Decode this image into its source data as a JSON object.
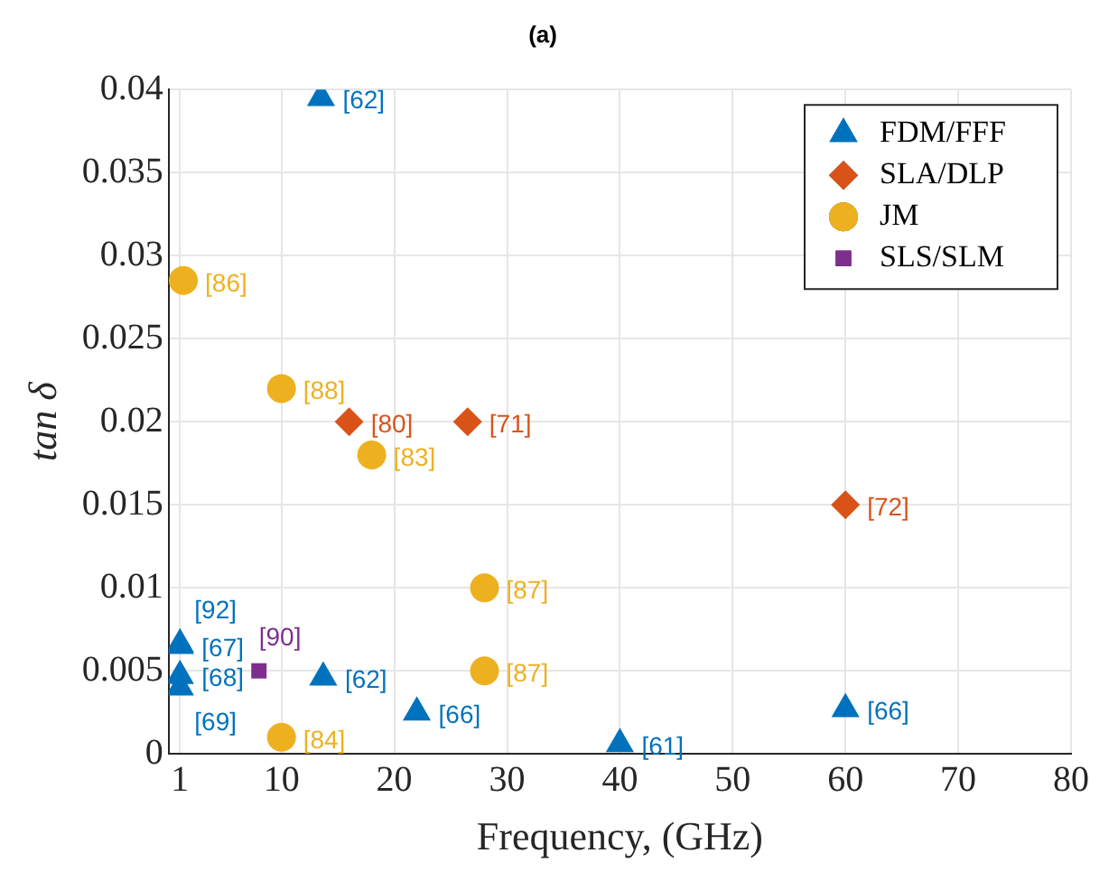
{
  "chart_data": {
    "type": "scatter",
    "title": "(a)",
    "xlabel": "Frequency, (GHz)",
    "ylabel": "tan δ",
    "xlim": [
      0,
      80
    ],
    "xticks": [
      1,
      10,
      20,
      30,
      40,
      50,
      60,
      70,
      80
    ],
    "ylim": [
      0,
      0.04
    ],
    "yticks": [
      0,
      0.005,
      0.01,
      0.015,
      0.02,
      0.025,
      0.03,
      0.035,
      0.04
    ],
    "grid": true,
    "legend": "top right",
    "series": [
      {
        "name": "FDM/FFF",
        "color": "#0072bd",
        "marker": "triangle",
        "x": [
          13.5,
          1,
          1,
          1,
          1,
          13.7,
          22,
          40,
          60
        ],
        "values": [
          0.0395,
          0.0065,
          0.0066,
          0.0047,
          0.004,
          0.0046,
          0.0025,
          0.0006,
          0.0027
        ]
      },
      {
        "name": "SLA/DLP",
        "color": "#d95319",
        "marker": "diamond",
        "x": [
          16,
          26.5,
          60
        ],
        "values": [
          0.02,
          0.02,
          0.015
        ]
      },
      {
        "name": "JM",
        "color": "#edb120",
        "marker": "circle",
        "x": [
          1.3,
          10,
          18,
          28,
          28,
          10
        ],
        "values": [
          0.0285,
          0.022,
          0.018,
          0.01,
          0.005,
          0.001
        ]
      },
      {
        "name": "SLS/SLM",
        "color": "#7e2f8e",
        "marker": "square",
        "x": [
          8
        ],
        "values": [
          0.005
        ]
      }
    ],
    "annotations": [
      {
        "text": "[62]",
        "x": 13.5,
        "y": 0.0395
      },
      {
        "text": "[67]",
        "x": 1,
        "y": 0.0065
      },
      {
        "text": "[92]",
        "x": 1,
        "y": 0.0066
      },
      {
        "text": "[68]",
        "x": 1,
        "y": 0.0047
      },
      {
        "text": "[69]",
        "x": 1,
        "y": 0.004
      },
      {
        "text": "[62]",
        "x": 13.7,
        "y": 0.0046
      },
      {
        "text": "[66]",
        "x": 22,
        "y": 0.0025
      },
      {
        "text": "[61]",
        "x": 40,
        "y": 0.0006
      },
      {
        "text": "[66]",
        "x": 60,
        "y": 0.0027
      },
      {
        "text": "[80]",
        "x": 16,
        "y": 0.02
      },
      {
        "text": "[71]",
        "x": 26.5,
        "y": 0.02
      },
      {
        "text": "[72]",
        "x": 60,
        "y": 0.015
      },
      {
        "text": "[86]",
        "x": 1.3,
        "y": 0.0285
      },
      {
        "text": "[88]",
        "x": 10,
        "y": 0.022
      },
      {
        "text": "[83]",
        "x": 18,
        "y": 0.018
      },
      {
        "text": "[87]",
        "x": 28,
        "y": 0.01
      },
      {
        "text": "[87]",
        "x": 28,
        "y": 0.005
      },
      {
        "text": "[84]",
        "x": 10,
        "y": 0.001
      },
      {
        "text": "[90]",
        "x": 8,
        "y": 0.005
      }
    ]
  }
}
